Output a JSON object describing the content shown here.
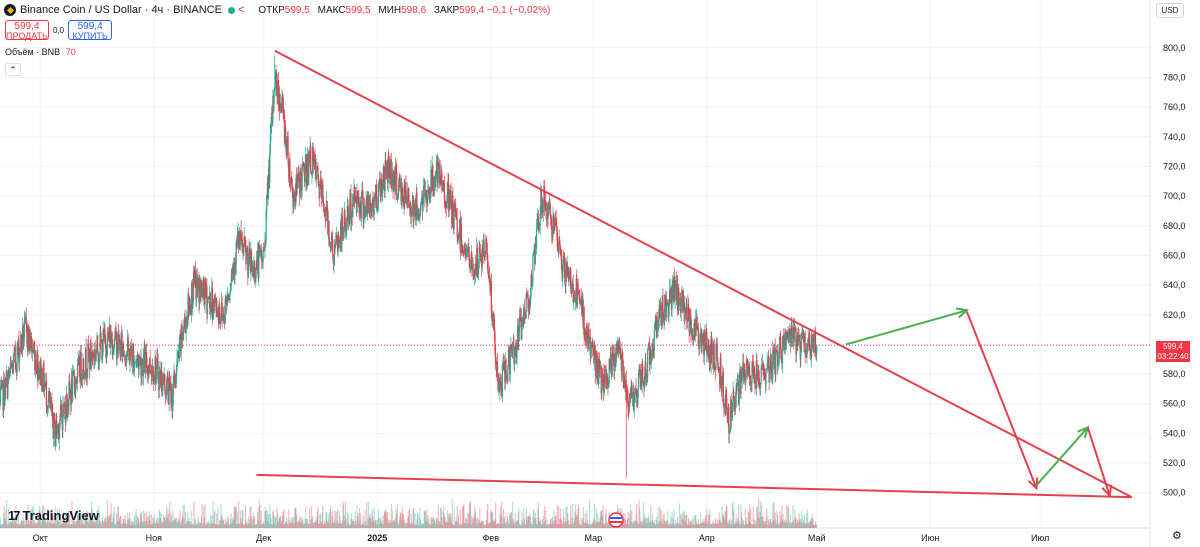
{
  "header": {
    "symbol_title": "Binance Coin / US Dollar · 4ч · BINANCE",
    "ohlc": [
      {
        "label": "ОТКР",
        "value": "599,5"
      },
      {
        "label": "МАКС",
        "value": "599,5"
      },
      {
        "label": "МИН",
        "value": "598,6"
      },
      {
        "label": "ЗАКР",
        "value": "599,4 −0,1 (−0,02%)"
      }
    ]
  },
  "trade": {
    "sell_price": "599,4",
    "sell_label": "ПРОДАТЬ",
    "spread": "0,0",
    "buy_price": "599,4",
    "buy_label": "КУПИТЬ"
  },
  "volume_legend": {
    "label": "Объём · BNB",
    "value": "70"
  },
  "currency_button": "USD",
  "price_tag": {
    "price": "599,4",
    "countdown": "03:22:40"
  },
  "brand": "TradingView",
  "colors": {
    "up": "#22ab94",
    "down": "#f23645",
    "drawing": "#e5414d",
    "arrow_green": "#4caf50"
  },
  "chart_data": {
    "type": "candlestick",
    "interval": "4ч",
    "y_axis": {
      "ticks": [
        "800,0",
        "780,0",
        "760,0",
        "740,0",
        "720,0",
        "700,0",
        "680,0",
        "660,0",
        "640,0",
        "620,0",
        "600,0",
        "580,0",
        "560,0",
        "540,0",
        "520,0",
        "500,0"
      ],
      "ylim": [
        487,
        812
      ]
    },
    "x_axis": {
      "ticks": [
        "Окт",
        "Ноя",
        "Дек",
        "2025",
        "Фев",
        "Мар",
        "Апр",
        "Май",
        "Июн",
        "Июл"
      ],
      "tick_dates": [
        "2024-10-01",
        "2024-11-01",
        "2024-12-01",
        "2025-01-01",
        "2025-02-01",
        "2025-03-01",
        "2025-04-01",
        "2025-05-01",
        "2025-06-01",
        "2025-07-01"
      ],
      "xlim": [
        "2024-09-20",
        "2025-07-31"
      ]
    },
    "current_price": 599.4,
    "price_path": [
      [
        "2024-09-20",
        560
      ],
      [
        "2024-09-27",
        610
      ],
      [
        "2024-10-02",
        575
      ],
      [
        "2024-10-05",
        540
      ],
      [
        "2024-10-12",
        585
      ],
      [
        "2024-10-20",
        605
      ],
      [
        "2024-10-27",
        590
      ],
      [
        "2024-11-01",
        585
      ],
      [
        "2024-11-06",
        565
      ],
      [
        "2024-11-09",
        610
      ],
      [
        "2024-11-12",
        640
      ],
      [
        "2024-11-16",
        630
      ],
      [
        "2024-11-20",
        620
      ],
      [
        "2024-11-24",
        670
      ],
      [
        "2024-11-28",
        650
      ],
      [
        "2024-12-01",
        660
      ],
      [
        "2024-12-04",
        780
      ],
      [
        "2024-12-06",
        760
      ],
      [
        "2024-12-09",
        700
      ],
      [
        "2024-12-14",
        725
      ],
      [
        "2024-12-18",
        690
      ],
      [
        "2024-12-20",
        660
      ],
      [
        "2024-12-26",
        700
      ],
      [
        "2024-12-30",
        690
      ],
      [
        "2025-01-04",
        720
      ],
      [
        "2025-01-08",
        700
      ],
      [
        "2025-01-12",
        690
      ],
      [
        "2025-01-17",
        715
      ],
      [
        "2025-01-20",
        700
      ],
      [
        "2025-01-27",
        650
      ],
      [
        "2025-01-31",
        665
      ],
      [
        "2025-02-03",
        570
      ],
      [
        "2025-02-08",
        600
      ],
      [
        "2025-02-12",
        640
      ],
      [
        "2025-02-15",
        700
      ],
      [
        "2025-02-18",
        680
      ],
      [
        "2025-02-21",
        650
      ],
      [
        "2025-02-25",
        630
      ],
      [
        "2025-02-28",
        600
      ],
      [
        "2025-03-04",
        570
      ],
      [
        "2025-03-08",
        600
      ],
      [
        "2025-03-11",
        560
      ],
      [
        "2025-03-15",
        580
      ],
      [
        "2025-03-19",
        620
      ],
      [
        "2025-03-23",
        635
      ],
      [
        "2025-03-27",
        620
      ],
      [
        "2025-03-31",
        600
      ],
      [
        "2025-04-04",
        590
      ],
      [
        "2025-04-07",
        550
      ],
      [
        "2025-04-11",
        580
      ],
      [
        "2025-04-16",
        580
      ],
      [
        "2025-04-20",
        590
      ],
      [
        "2025-04-23",
        605
      ],
      [
        "2025-04-27",
        600
      ],
      [
        "2025-05-01",
        599.4
      ]
    ],
    "extremes": {
      "high": 795,
      "high_date": "2024-12-04",
      "low": 510,
      "low_date": "2025-03-10"
    },
    "drawings": {
      "trendlines": [
        {
          "from": [
            "2024-12-04",
            798
          ],
          "to": [
            "2025-07-26",
            497
          ]
        },
        {
          "from": [
            "2024-11-29",
            512
          ],
          "to": [
            "2025-07-26",
            497
          ]
        }
      ],
      "arrows": [
        {
          "color": "green",
          "from": [
            "2025-05-09",
            600
          ],
          "to": [
            "2025-06-11",
            623
          ]
        },
        {
          "color": "red",
          "from": [
            "2025-06-11",
            622
          ],
          "to": [
            "2025-06-30",
            503
          ]
        },
        {
          "color": "green",
          "from": [
            "2025-06-30",
            505
          ],
          "to": [
            "2025-07-14",
            544
          ]
        },
        {
          "color": "red",
          "from": [
            "2025-07-14",
            544
          ],
          "to": [
            "2025-07-20",
            498
          ]
        }
      ]
    }
  }
}
